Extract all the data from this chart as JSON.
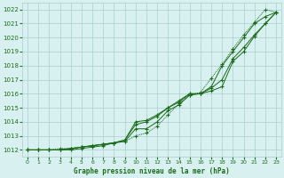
{
  "x": [
    0,
    1,
    2,
    3,
    4,
    5,
    6,
    7,
    8,
    9,
    10,
    11,
    12,
    13,
    14,
    15,
    16,
    17,
    18,
    19,
    20,
    21,
    22,
    23
  ],
  "line_top_dotted": [
    1012.0,
    1012.0,
    1012.0,
    1012.1,
    1012.1,
    1012.2,
    1012.3,
    1012.4,
    1012.5,
    1012.6,
    1013.0,
    1013.2,
    1013.7,
    1014.5,
    1015.3,
    1015.9,
    1016.1,
    1017.1,
    1018.1,
    1019.2,
    1020.2,
    1021.1,
    1022.0,
    1021.8
  ],
  "line_solid_upper": [
    1012.0,
    1012.0,
    1012.0,
    1012.0,
    1012.1,
    1012.2,
    1012.3,
    1012.4,
    1012.5,
    1012.7,
    1014.0,
    1014.1,
    1014.5,
    1015.0,
    1015.5,
    1016.0,
    1016.0,
    1016.5,
    1018.0,
    1019.0,
    1020.0,
    1021.0,
    1021.5,
    1021.8
  ],
  "line_solid_mid": [
    1012.0,
    1012.0,
    1012.0,
    1012.0,
    1012.1,
    1012.2,
    1012.3,
    1012.4,
    1012.5,
    1012.7,
    1013.8,
    1014.0,
    1014.4,
    1015.0,
    1015.4,
    1016.0,
    1016.0,
    1016.4,
    1017.0,
    1018.5,
    1019.3,
    1020.2,
    1021.0,
    1021.8
  ],
  "line_solid_lower": [
    1012.0,
    1012.0,
    1012.0,
    1012.0,
    1012.0,
    1012.1,
    1012.2,
    1012.3,
    1012.5,
    1012.6,
    1013.5,
    1013.5,
    1014.0,
    1014.8,
    1015.2,
    1015.9,
    1016.0,
    1016.2,
    1016.5,
    1018.3,
    1019.0,
    1020.1,
    1021.0,
    1021.8
  ],
  "line_color": "#1a6b1a",
  "bg_color": "#d8f0f0",
  "grid_color": "#aacece",
  "xlabel": "Graphe pression niveau de la mer (hPa)",
  "ylim": [
    1011.5,
    1022.5
  ],
  "xlim": [
    -0.5,
    23.5
  ],
  "yticks": [
    1012,
    1013,
    1014,
    1015,
    1016,
    1017,
    1018,
    1019,
    1020,
    1021,
    1022
  ],
  "xticks": [
    0,
    1,
    2,
    3,
    4,
    5,
    6,
    7,
    8,
    9,
    10,
    11,
    12,
    13,
    14,
    15,
    16,
    17,
    18,
    19,
    20,
    21,
    22,
    23
  ]
}
